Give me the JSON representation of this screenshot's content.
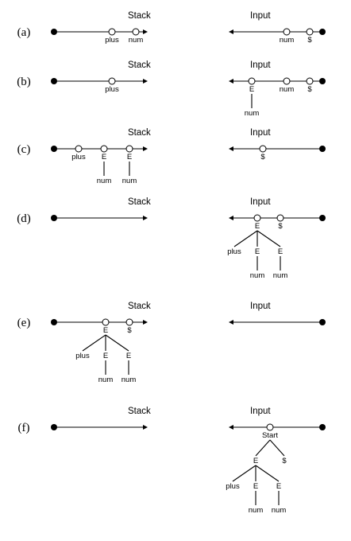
{
  "stack_heading": "Stack",
  "input_heading": "Input",
  "rows": [
    {
      "label": "(a)",
      "stack": [
        {
          "tree": {
            "text": "plus"
          }
        },
        {
          "tree": {
            "text": "num"
          }
        }
      ],
      "input": [
        {
          "tree": {
            "text": "num"
          }
        },
        {
          "tree": {
            "text": "$"
          }
        }
      ]
    },
    {
      "label": "(b)",
      "stack": [
        {
          "tree": {
            "text": "plus"
          }
        }
      ],
      "input": [
        {
          "tree": {
            "text": "E",
            "children": [
              {
                "text": "num"
              }
            ]
          }
        },
        {
          "tree": {
            "text": "num"
          }
        },
        {
          "tree": {
            "text": "$"
          }
        }
      ]
    },
    {
      "label": "(c)",
      "stack": [
        {
          "tree": {
            "text": "plus"
          }
        },
        {
          "tree": {
            "text": "E",
            "children": [
              {
                "text": "num"
              }
            ]
          }
        },
        {
          "tree": {
            "text": "E",
            "children": [
              {
                "text": "num"
              }
            ]
          }
        }
      ],
      "input": [
        {
          "tree": {
            "text": "$"
          }
        }
      ]
    },
    {
      "label": "(d)",
      "stack": [],
      "input": [
        {
          "tree": {
            "text": "E",
            "children": [
              {
                "text": "plus"
              },
              {
                "text": "E",
                "children": [
                  {
                    "text": "num"
                  }
                ]
              },
              {
                "text": "E",
                "children": [
                  {
                    "text": "num"
                  }
                ]
              }
            ]
          }
        },
        {
          "tree": {
            "text": "$"
          }
        }
      ]
    },
    {
      "label": "(e)",
      "stack": [
        {
          "tree": {
            "text": "E",
            "children": [
              {
                "text": "plus"
              },
              {
                "text": "E",
                "children": [
                  {
                    "text": "num"
                  }
                ]
              },
              {
                "text": "E",
                "children": [
                  {
                    "text": "num"
                  }
                ]
              }
            ]
          }
        },
        {
          "tree": {
            "text": "$"
          }
        }
      ],
      "input": []
    },
    {
      "label": "(f)",
      "stack": [],
      "input": [
        {
          "tree": {
            "text": "Start",
            "children": [
              {
                "text": "E",
                "children": [
                  {
                    "text": "plus"
                  },
                  {
                    "text": "E",
                    "children": [
                      {
                        "text": "num"
                      }
                    ]
                  },
                  {
                    "text": "E",
                    "children": [
                      {
                        "text": "num"
                      }
                    ]
                  }
                ]
              },
              {
                "text": "$"
              }
            ]
          }
        }
      ]
    }
  ]
}
